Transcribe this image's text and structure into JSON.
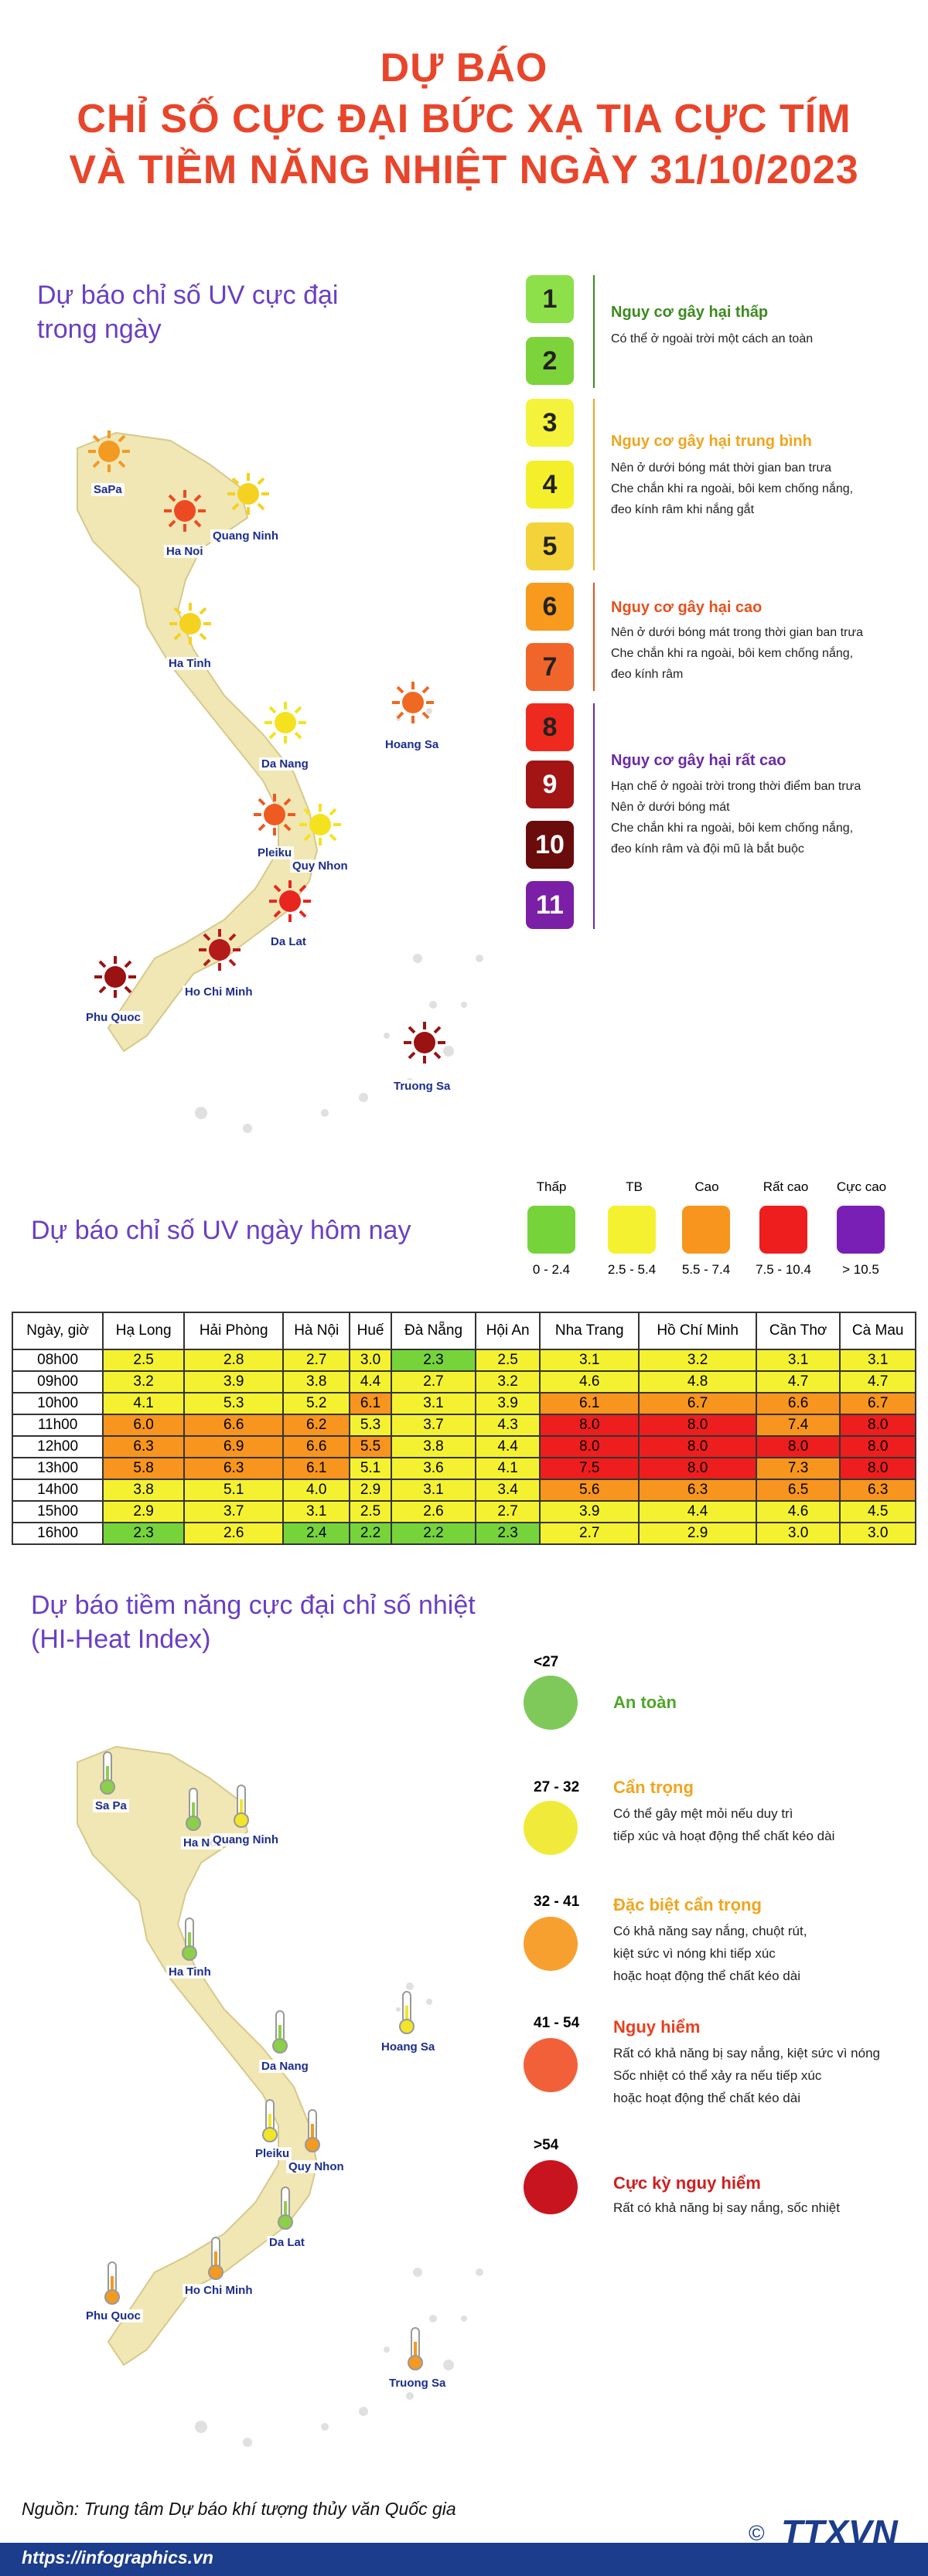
{
  "header": {
    "line1": "DỰ BÁO",
    "line2": "CHỈ SỐ CỰC ĐẠI BỨC XẠ TIA CỰC TÍM",
    "line3": "VÀ TIỀM NĂNG NHIỆT NGÀY 31/10/2023"
  },
  "uv_map": {
    "title_line1": "Dự báo chỉ số UV cực đại",
    "title_line2": "trong ngày",
    "cities": [
      {
        "name": "SaPa",
        "color": "#f39a23"
      },
      {
        "name": "Ha Noi",
        "color": "#ee4a22"
      },
      {
        "name": "Quang Ninh",
        "color": "#f4d21f"
      },
      {
        "name": "Ha Tinh",
        "color": "#f4d21f"
      },
      {
        "name": "Hoang Sa",
        "color": "#ee6a22"
      },
      {
        "name": "Da Nang",
        "color": "#f4e21f"
      },
      {
        "name": "Pleiku",
        "color": "#ee5a22"
      },
      {
        "name": "Quy Nhon",
        "color": "#f4e21f"
      },
      {
        "name": "Da Lat",
        "color": "#e8261f"
      },
      {
        "name": "Ho Chi Minh",
        "color": "#b51a1a"
      },
      {
        "name": "Phu Quoc",
        "color": "#9a1212"
      },
      {
        "name": "Truong Sa",
        "color": "#9a1212"
      }
    ]
  },
  "uv_scale": {
    "levels": [
      {
        "value": "1",
        "color": "#8ee04a"
      },
      {
        "value": "2",
        "color": "#7dd33a"
      },
      {
        "value": "3",
        "color": "#f4f23a"
      },
      {
        "value": "4",
        "color": "#f4ef2a"
      },
      {
        "value": "5",
        "color": "#f4d23a"
      },
      {
        "value": "6",
        "color": "#f79a1e"
      },
      {
        "value": "7",
        "color": "#f2652a"
      },
      {
        "value": "8",
        "color": "#ee2a1e"
      },
      {
        "value": "9",
        "color": "#a31515"
      },
      {
        "value": "10",
        "color": "#6a0c0c"
      },
      {
        "value": "11",
        "color": "#7a1fa6"
      }
    ],
    "groups": [
      {
        "title": "Nguy cơ gây hại thấp",
        "color": "#3c8a1e",
        "desc": [
          "Có thể ở ngoài trời một cách an toàn"
        ]
      },
      {
        "title": "Nguy cơ gây hại trung bình",
        "color": "#f0a51e",
        "desc": [
          "Nên ở dưới bóng mát thời gian ban trưa",
          "Che chắn khi ra ngoài, bôi kem chống nắng,",
          "đeo kính râm khi nắng gắt"
        ]
      },
      {
        "title": "Nguy cơ gây hại cao",
        "color": "#e8501e",
        "desc": [
          "Nên ở dưới bóng mát trong thời gian ban trưa",
          "Che chắn khi ra ngoài, bôi kem chống nắng,",
          "đeo kính râm"
        ]
      },
      {
        "title": "Nguy cơ gây hại rất cao",
        "color": "#6a2aa6",
        "desc": [
          "Hạn chế ở ngoài trời trong thời điểm ban trưa",
          "Nên ở dưới bóng mát",
          "Che chắn khi ra ngoài, bôi kem chống nắng,",
          "đeo kính râm và đội mũ là bắt buộc"
        ]
      }
    ]
  },
  "uv_today": {
    "title": "Dự báo chỉ số UV ngày hôm nay",
    "legend": [
      {
        "label": "Thấp",
        "range": "0 - 2.4",
        "color": "#76d43a"
      },
      {
        "label": "TB",
        "range": "2.5 - 5.4",
        "color": "#f4f230"
      },
      {
        "label": "Cao",
        "range": "5.5 - 7.4",
        "color": "#f7951e"
      },
      {
        "label": "Rất cao",
        "range": "7.5 - 10.4",
        "color": "#ee1e1e"
      },
      {
        "label": "Cực cao",
        "range": "> 10.5",
        "color": "#7a1fb6"
      }
    ],
    "columns": [
      "Ngày, giờ",
      "Hạ Long",
      "Hải Phòng",
      "Hà Nội",
      "Huế",
      "Đà Nẵng",
      "Hội An",
      "Nha Trang",
      "Hồ Chí Minh",
      "Cần Thơ",
      "Cà Mau"
    ],
    "rows": [
      [
        "08h00",
        "2.5",
        "2.8",
        "2.7",
        "3.0",
        "2.3",
        "2.5",
        "3.1",
        "3.2",
        "3.1",
        "3.1"
      ],
      [
        "09h00",
        "3.2",
        "3.9",
        "3.8",
        "4.4",
        "2.7",
        "3.2",
        "4.6",
        "4.8",
        "4.7",
        "4.7"
      ],
      [
        "10h00",
        "4.1",
        "5.3",
        "5.2",
        "6.1",
        "3.1",
        "3.9",
        "6.1",
        "6.7",
        "6.6",
        "6.7"
      ],
      [
        "11h00",
        "6.0",
        "6.6",
        "6.2",
        "5.3",
        "3.7",
        "4.3",
        "8.0",
        "8.0",
        "7.4",
        "8.0"
      ],
      [
        "12h00",
        "6.3",
        "6.9",
        "6.6",
        "5.5",
        "3.8",
        "4.4",
        "8.0",
        "8.0",
        "8.0",
        "8.0"
      ],
      [
        "13h00",
        "5.8",
        "6.3",
        "6.1",
        "5.1",
        "3.6",
        "4.1",
        "7.5",
        "8.0",
        "7.3",
        "8.0"
      ],
      [
        "14h00",
        "3.8",
        "5.1",
        "4.0",
        "2.9",
        "3.1",
        "3.4",
        "5.6",
        "6.3",
        "6.5",
        "6.3"
      ],
      [
        "15h00",
        "2.9",
        "3.7",
        "3.1",
        "2.5",
        "2.6",
        "2.7",
        "3.9",
        "4.4",
        "4.6",
        "4.5"
      ],
      [
        "16h00",
        "2.3",
        "2.6",
        "2.4",
        "2.2",
        "2.2",
        "2.3",
        "2.7",
        "2.9",
        "3.0",
        "3.0"
      ]
    ]
  },
  "heat_map": {
    "title_line1": "Dự báo tiềm năng cực đại chỉ số nhiệt",
    "title_line2": "(HI-Heat Index)",
    "cities": [
      {
        "name": "Sa Pa",
        "color": "#8ccf4a"
      },
      {
        "name": "Ha Noi",
        "color": "#8ccf4a"
      },
      {
        "name": "Quang Ninh",
        "color": "#f2e52a"
      },
      {
        "name": "Ha Tinh",
        "color": "#8ccf4a"
      },
      {
        "name": "Hoang Sa",
        "color": "#f2e52a"
      },
      {
        "name": "Da Nang",
        "color": "#8ccf4a"
      },
      {
        "name": "Pleiku",
        "color": "#f2e52a"
      },
      {
        "name": "Quy Nhon",
        "color": "#f39a23"
      },
      {
        "name": "Da Lat",
        "color": "#8ccf4a"
      },
      {
        "name": "Ho Chi Minh",
        "color": "#f39a23"
      },
      {
        "name": "Phu Quoc",
        "color": "#f39a23"
      },
      {
        "name": "Truong Sa",
        "color": "#f39a23"
      }
    ],
    "legend": [
      {
        "range": "<27",
        "title": "An toàn",
        "color": "#7ec95a",
        "title_color": "#4ea628",
        "desc": []
      },
      {
        "range": "27 - 32",
        "title": "Cẩn trọng",
        "color": "#f0eb3a",
        "title_color": "#f0a51e",
        "desc": [
          "Có thể gây mệt mỏi nếu duy trì",
          "tiếp xúc và hoạt động thể chất kéo dài"
        ]
      },
      {
        "range": "32 - 41",
        "title": "Đặc biệt cẩn trọng",
        "color": "#f7a030",
        "title_color": "#f0a51e",
        "desc": [
          "Có khả năng say nắng, chuột rút,",
          "kiệt sức vì nóng khi tiếp xúc",
          "hoặc hoạt động thể chất kéo dài"
        ]
      },
      {
        "range": "41 - 54",
        "title": "Nguy hiểm",
        "color": "#f2603a",
        "title_color": "#e8401e",
        "desc": [
          "Rất có khả năng bị say nắng, kiệt sức vì nóng",
          "Sốc nhiệt có thể xảy ra nếu tiếp xúc",
          "hoặc hoạt động thể chất kéo dài"
        ]
      },
      {
        "range": ">54",
        "title": "Cực kỳ nguy hiểm",
        "color": "#c8141e",
        "title_color": "#d01e1e",
        "desc": [
          "Rất có khả năng bị say nắng, sốc nhiệt"
        ]
      }
    ]
  },
  "footer": {
    "source": "Nguồn: Trung tâm Dự báo khí tượng thủy văn Quốc gia",
    "url": "https://infographics.vn",
    "logo": "TTXVN",
    "copyright": "©"
  }
}
